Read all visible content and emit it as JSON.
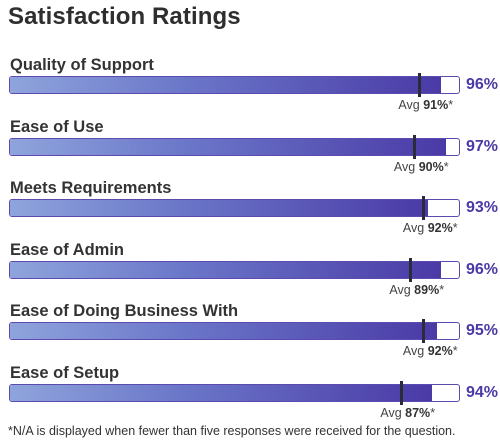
{
  "title": "Satisfaction Ratings",
  "footnote": "*N/A is displayed when fewer than five responses were received for the question.",
  "colors": {
    "accent": "#4a3aa6",
    "bar_light": "#8fa4dc",
    "marker": "#2b2b3a"
  },
  "chart_data": {
    "type": "bar",
    "orientation": "horizontal",
    "title": "Satisfaction Ratings",
    "xlim": [
      0,
      100
    ],
    "grid": false,
    "categories": [
      "Quality of Support",
      "Ease of Use",
      "Meets Requirements",
      "Ease of Admin",
      "Ease of Doing Business With",
      "Ease of Setup"
    ],
    "values": [
      96,
      97,
      93,
      96,
      95,
      94
    ],
    "value_labels": [
      "96%",
      "97%",
      "93%",
      "96%",
      "95%",
      "94%"
    ],
    "averages": [
      91,
      90,
      92,
      89,
      92,
      87
    ],
    "avg_prefix": "Avg",
    "avg_values": [
      "91%",
      "90%",
      "92%",
      "89%",
      "92%",
      "87%"
    ],
    "avg_suffix": "*"
  }
}
